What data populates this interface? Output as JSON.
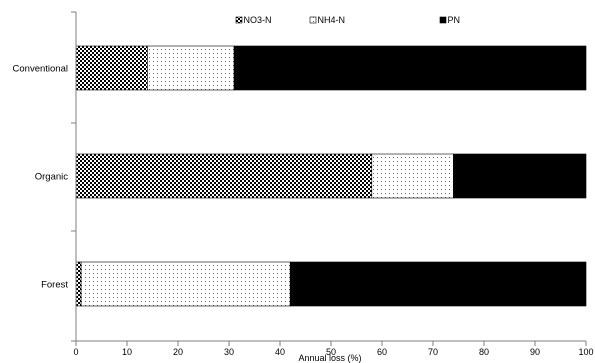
{
  "chart_data": {
    "type": "bar",
    "orientation": "horizontal",
    "stacked": true,
    "title": "",
    "xlabel": "Annual loss (%)",
    "ylabel": "",
    "xlim": [
      0,
      100
    ],
    "x_ticks": [
      0,
      10,
      20,
      30,
      40,
      50,
      60,
      70,
      80,
      90,
      100
    ],
    "categories": [
      "Conventional",
      "Organic",
      "Forest"
    ],
    "series": [
      {
        "name": "NO3-N",
        "pattern": "checker",
        "values": [
          14,
          58,
          1
        ]
      },
      {
        "name": "NH4-N",
        "pattern": "dots",
        "values": [
          17,
          16,
          41
        ]
      },
      {
        "name": "PN",
        "pattern": "solid",
        "values": [
          69,
          26,
          58
        ]
      }
    ],
    "legend_position": "top",
    "grid": false,
    "colors": {
      "bar_fill": "#000000",
      "axis": "#7f7f7f",
      "dots_bg": "#ffffff"
    }
  }
}
